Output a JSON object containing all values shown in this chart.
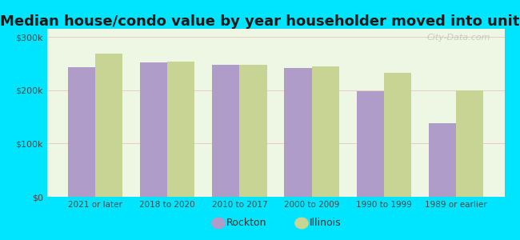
{
  "title": "Median house/condo value by year householder moved into unit",
  "categories": [
    "2021 or later",
    "2018 to 2020",
    "2010 to 2017",
    "2000 to 2009",
    "1990 to 1999",
    "1989 or earlier"
  ],
  "rockton_values": [
    243000,
    252000,
    248000,
    242000,
    198000,
    138000
  ],
  "illinois_values": [
    268000,
    253000,
    247000,
    244000,
    232000,
    200000
  ],
  "rockton_color": "#b09cc8",
  "illinois_color": "#c8d494",
  "background_outer": "#00e5ff",
  "background_inner": "#eef7e4",
  "title_fontsize": 13,
  "ylabel_ticks": [
    "$0",
    "$100k",
    "$200k",
    "$300k"
  ],
  "ytick_values": [
    0,
    100000,
    200000,
    300000
  ],
  "ylim": [
    0,
    315000
  ],
  "legend_labels": [
    "Rockton",
    "Illinois"
  ],
  "watermark": "City-Data.com",
  "bar_width": 0.38
}
